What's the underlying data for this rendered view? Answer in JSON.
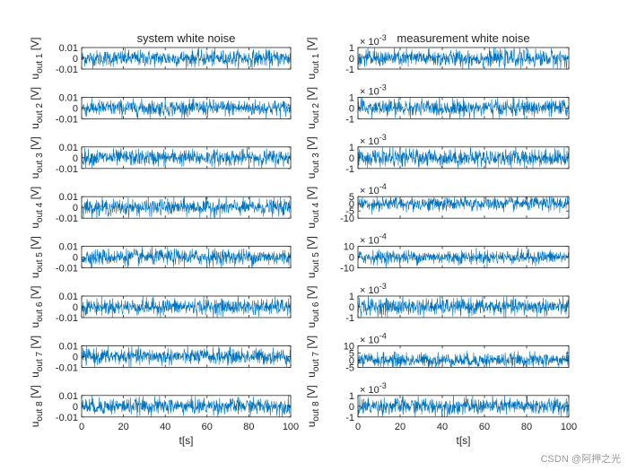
{
  "watermark": "CSDN @阿押之光",
  "colors": {
    "series": "#0072BD",
    "axis": "#262626",
    "background": "#ffffff"
  },
  "chart_data": [
    {
      "type": "line",
      "title": "system white noise",
      "xlabel": "t[s]",
      "xlim": [
        0,
        100
      ],
      "xticks": [
        0,
        20,
        40,
        60,
        80,
        100
      ],
      "grid": false,
      "panels": [
        {
          "ylabel_main": "u",
          "ylabel_sub": "out 1",
          "ylabel_unit": "[V]",
          "ylim": [
            -0.01,
            0.01
          ],
          "yticks": [
            "-0.01",
            "0",
            "0.01"
          ],
          "exponent": "",
          "noise_amplitude": 0.0038
        },
        {
          "ylabel_main": "u",
          "ylabel_sub": "out 2",
          "ylabel_unit": "[V]",
          "ylim": [
            -0.01,
            0.01
          ],
          "yticks": [
            "-0.01",
            "0",
            "0.01"
          ],
          "exponent": "",
          "noise_amplitude": 0.0038
        },
        {
          "ylabel_main": "u",
          "ylabel_sub": "out 3",
          "ylabel_unit": "[V]",
          "ylim": [
            -0.01,
            0.01
          ],
          "yticks": [
            "-0.01",
            "0",
            "0.01"
          ],
          "exponent": "",
          "noise_amplitude": 0.0038
        },
        {
          "ylabel_main": "u",
          "ylabel_sub": "out 4",
          "ylabel_unit": "[V]",
          "ylim": [
            -0.01,
            0.01
          ],
          "yticks": [
            "-0.01",
            "0",
            "0.01"
          ],
          "exponent": "",
          "noise_amplitude": 0.0038
        },
        {
          "ylabel_main": "u",
          "ylabel_sub": "out 5",
          "ylabel_unit": "[V]",
          "ylim": [
            -0.01,
            0.01
          ],
          "yticks": [
            "-0.01",
            "0",
            "0.01"
          ],
          "exponent": "",
          "noise_amplitude": 0.0038
        },
        {
          "ylabel_main": "u",
          "ylabel_sub": "out 6",
          "ylabel_unit": "[V]",
          "ylim": [
            -0.01,
            0.01
          ],
          "yticks": [
            "-0.01",
            "0",
            "0.01"
          ],
          "exponent": "",
          "noise_amplitude": 0.0038
        },
        {
          "ylabel_main": "u",
          "ylabel_sub": "out 7",
          "ylabel_unit": "[V]",
          "ylim": [
            -0.01,
            0.01
          ],
          "yticks": [
            "-0.01",
            "0",
            "0.01"
          ],
          "exponent": "",
          "noise_amplitude": 0.0038
        },
        {
          "ylabel_main": "u",
          "ylabel_sub": "out 8",
          "ylabel_unit": "[V]",
          "ylim": [
            -0.01,
            0.01
          ],
          "yticks": [
            "-0.01",
            "0",
            "0.01"
          ],
          "exponent": "",
          "noise_amplitude": 0.0038
        }
      ]
    },
    {
      "type": "line",
      "title": "measurement white noise",
      "xlabel": "t[s]",
      "xlim": [
        0,
        100
      ],
      "xticks": [
        0,
        20,
        40,
        60,
        80,
        100
      ],
      "grid": false,
      "panels": [
        {
          "ylabel_main": "u",
          "ylabel_sub": "out 1",
          "ylabel_unit": "[V]",
          "ylim": [
            -1,
            1
          ],
          "yticks": [
            "-1",
            "0",
            "1"
          ],
          "exponent": "× 10^-3",
          "noise_amplitude": 0.4
        },
        {
          "ylabel_main": "u",
          "ylabel_sub": "out 2",
          "ylabel_unit": "[V]",
          "ylim": [
            -1,
            1
          ],
          "yticks": [
            "-1",
            "0",
            "1"
          ],
          "exponent": "× 10^-3",
          "noise_amplitude": 0.4
        },
        {
          "ylabel_main": "u",
          "ylabel_sub": "out 3",
          "ylabel_unit": "[V]",
          "ylim": [
            -1,
            1
          ],
          "yticks": [
            "-1",
            "0",
            "1"
          ],
          "exponent": "× 10^-3",
          "noise_amplitude": 0.4
        },
        {
          "ylabel_main": "u",
          "ylabel_sub": "out 4",
          "ylabel_unit": "[V]",
          "ylim": [
            -10,
            5
          ],
          "yticks": [
            "-10",
            "-5",
            "0",
            "5"
          ],
          "exponent": "× 10^-4",
          "noise_amplitude": 2.5
        },
        {
          "ylabel_main": "u",
          "ylabel_sub": "out 5",
          "ylabel_unit": "[V]",
          "ylim": [
            -10,
            10
          ],
          "yticks": [
            "-10",
            "0",
            "10"
          ],
          "exponent": "× 10^-4",
          "noise_amplitude": 3.2
        },
        {
          "ylabel_main": "u",
          "ylabel_sub": "out 6",
          "ylabel_unit": "[V]",
          "ylim": [
            -1,
            1
          ],
          "yticks": [
            "-1",
            "0",
            "1"
          ],
          "exponent": "× 10^-3",
          "noise_amplitude": 0.4
        },
        {
          "ylabel_main": "u",
          "ylabel_sub": "out 7",
          "ylabel_unit": "[V]",
          "ylim": [
            -5,
            10
          ],
          "yticks": [
            "-5",
            "0",
            "5",
            "10"
          ],
          "exponent": "× 10^-4",
          "noise_amplitude": 2.5
        },
        {
          "ylabel_main": "u",
          "ylabel_sub": "out 8",
          "ylabel_unit": "[V]",
          "ylim": [
            -1,
            1
          ],
          "yticks": [
            "-1",
            "0",
            "1"
          ],
          "exponent": "× 10^-3",
          "noise_amplitude": 0.4
        }
      ]
    }
  ]
}
